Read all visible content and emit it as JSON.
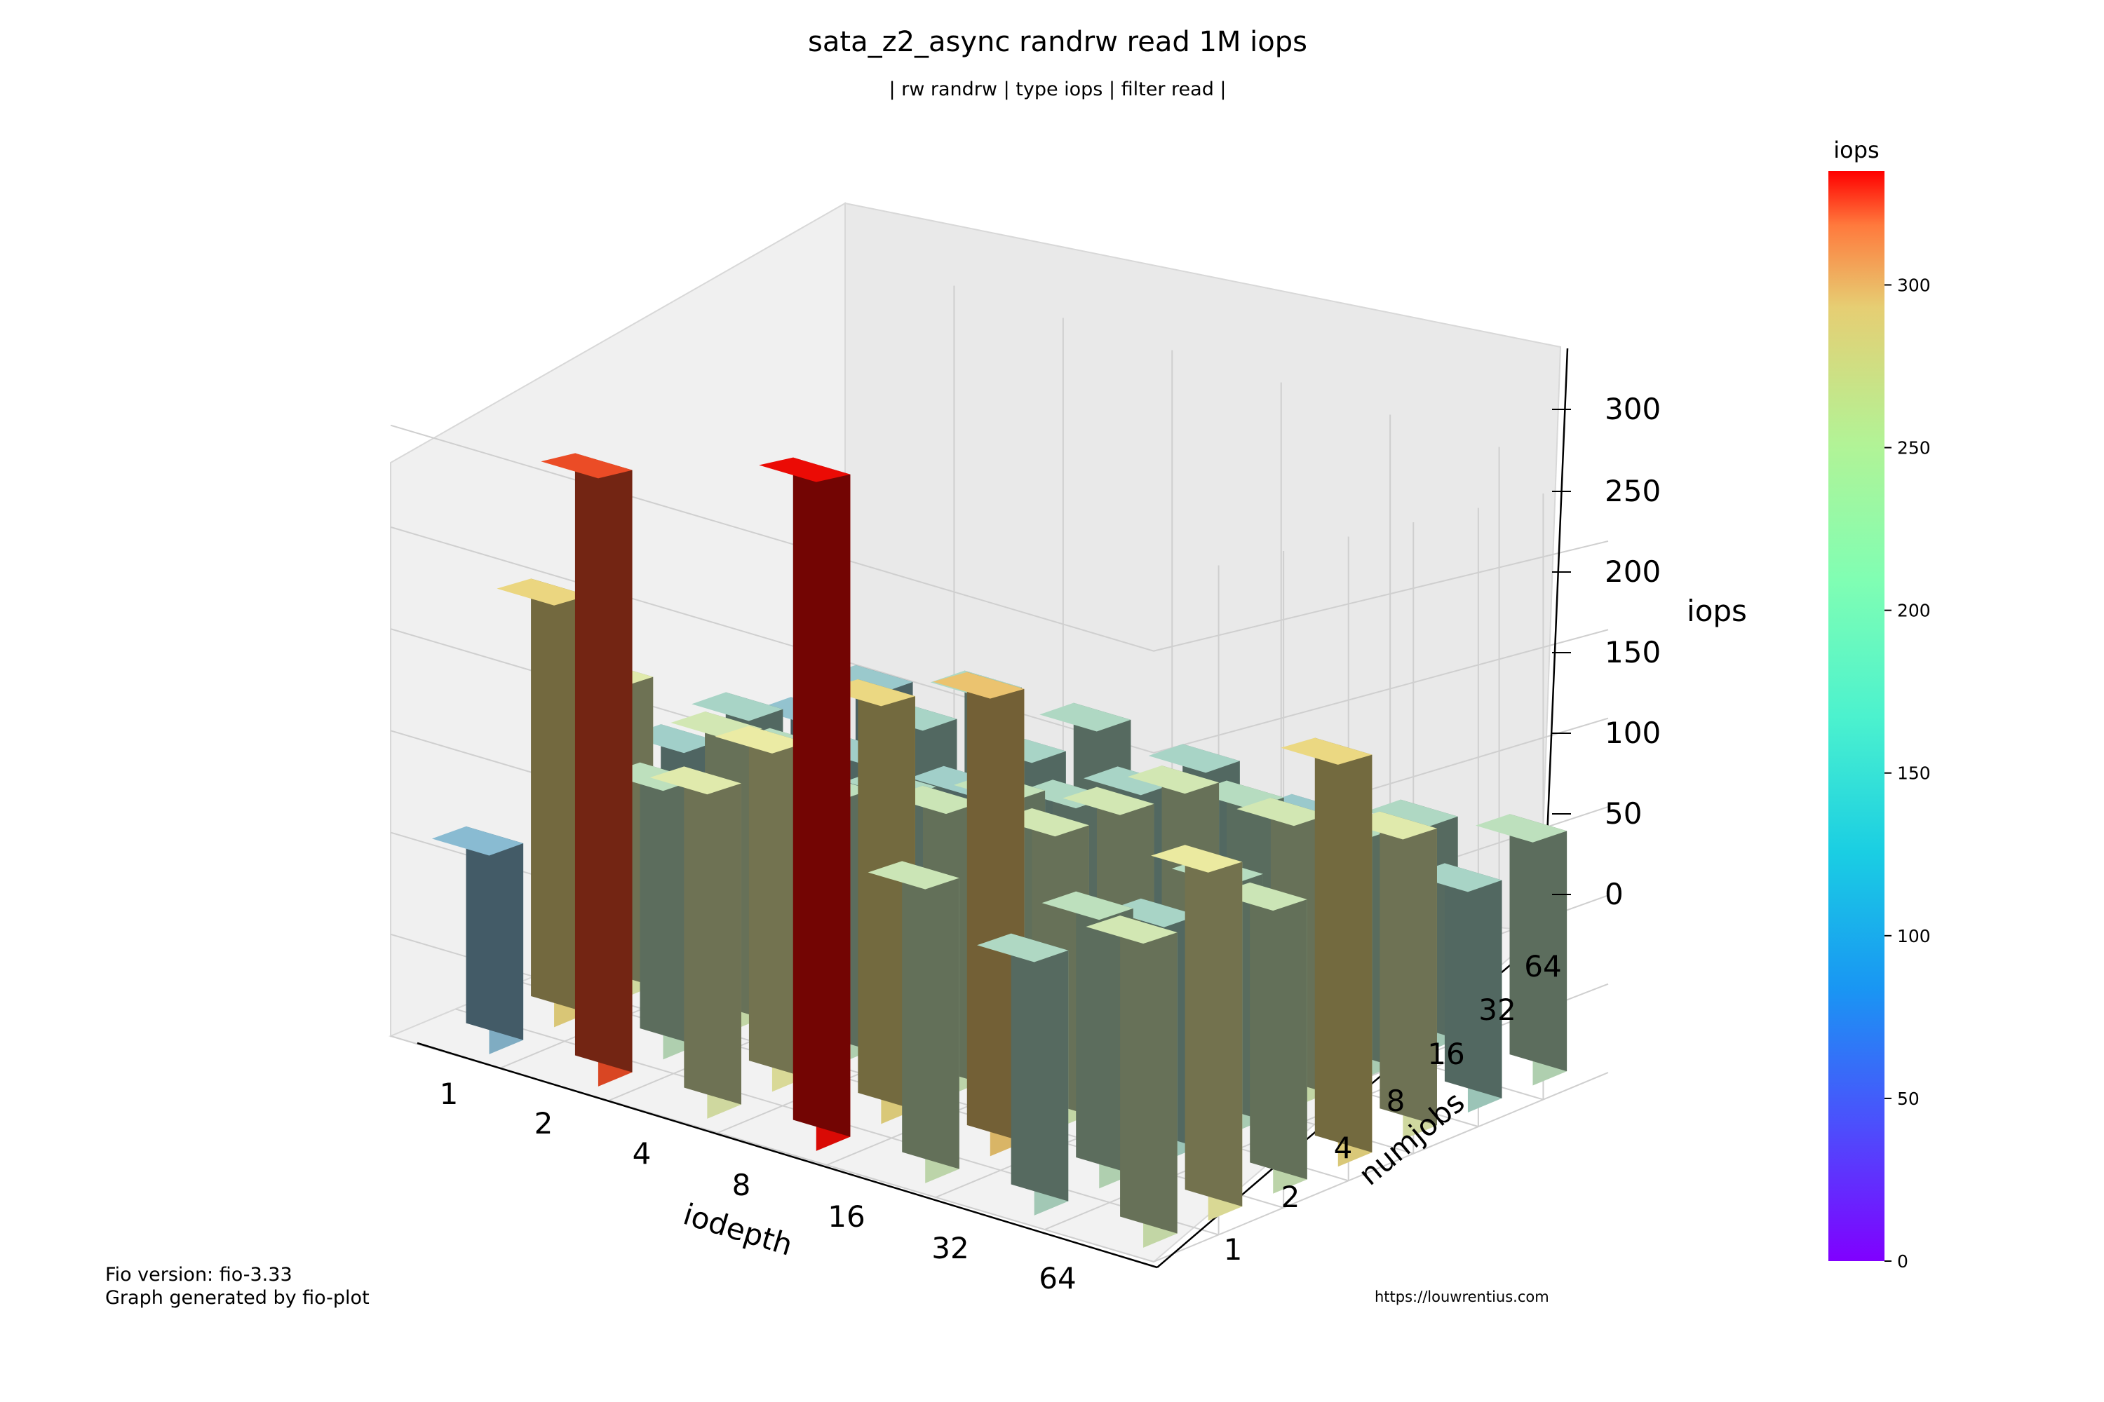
{
  "chart_data": {
    "type": "bar3d",
    "title": "sata_z2_async randrw read 1M iops",
    "subtitle": "| rw randrw | type iops | filter read |",
    "xlabel": "iodepth",
    "ylabel": "numjobs",
    "zlabel": "iops",
    "x_categories": [
      "1",
      "2",
      "4",
      "8",
      "16",
      "32",
      "64"
    ],
    "y_categories": [
      "1",
      "2",
      "4",
      "8",
      "16",
      "32",
      "64"
    ],
    "z_ticks": [
      0,
      50,
      100,
      150,
      200,
      250,
      300
    ],
    "zlim": [
      0,
      335
    ],
    "values": [
      [
        98,
        212,
        160,
        115,
        120,
        105,
        110
      ],
      [
        300,
        135,
        150,
        130,
        115,
        120,
        125
      ],
      [
        160,
        170,
        135,
        125,
        115,
        120,
        125
      ],
      [
        330,
        210,
        145,
        140,
        125,
        120,
        120
      ],
      [
        145,
        230,
        150,
        150,
        150,
        130,
        110
      ],
      [
        125,
        135,
        120,
        130,
        150,
        130,
        125
      ],
      [
        150,
        175,
        145,
        210,
        160,
        120,
        135
      ]
    ],
    "colorbar": {
      "label": "iops",
      "ticks": [
        0,
        50,
        100,
        150,
        200,
        250,
        300
      ],
      "range": [
        0,
        335
      ]
    }
  },
  "footer": {
    "version": "Fio version: fio-3.33",
    "generator": "Graph generated by fio-plot",
    "url": "https://louwrentius.com"
  }
}
